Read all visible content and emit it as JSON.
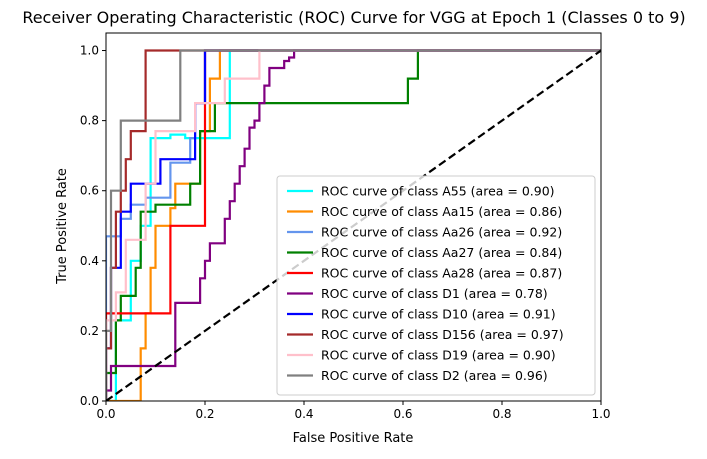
{
  "chart_data": {
    "type": "line",
    "title": "Receiver Operating Characteristic (ROC) Curve for VGG at Epoch 1 (Classes 0 to 9)",
    "xlabel": "False Positive Rate",
    "ylabel": "True Positive Rate",
    "xlim": [
      0.0,
      1.0
    ],
    "ylim": [
      0.0,
      1.05
    ],
    "xticks": [
      "0.0",
      "0.2",
      "0.4",
      "0.6",
      "0.8",
      "1.0"
    ],
    "yticks": [
      "0.0",
      "0.2",
      "0.4",
      "0.6",
      "0.8",
      "1.0"
    ],
    "grid": false,
    "legend_position": "lower-right",
    "diagonal": {
      "x": [
        0,
        1
      ],
      "y": [
        0,
        1
      ],
      "color": "#000000",
      "style": "dashed"
    },
    "series": [
      {
        "name": "ROC curve of class A55 (area = 0.90)",
        "color": "#00ffff",
        "x": [
          0,
          0.02,
          0.02,
          0.05,
          0.05,
          0.07,
          0.07,
          0.09,
          0.09,
          0.13,
          0.13,
          0.16,
          0.16,
          0.19,
          0.19,
          0.25,
          0.25,
          1.0
        ],
        "y": [
          0,
          0,
          0.23,
          0.23,
          0.4,
          0.4,
          0.5,
          0.5,
          0.75,
          0.75,
          0.76,
          0.76,
          0.75,
          0.75,
          0.75,
          0.75,
          1.0,
          1.0
        ]
      },
      {
        "name": "ROC curve of class Aa15 (area = 0.86)",
        "color": "#ff8c00",
        "x": [
          0,
          0.07,
          0.07,
          0.08,
          0.08,
          0.09,
          0.09,
          0.1,
          0.1,
          0.13,
          0.13,
          0.14,
          0.14,
          0.19,
          0.19,
          0.21,
          0.21,
          0.23,
          0.23,
          1.0
        ],
        "y": [
          0,
          0,
          0.15,
          0.15,
          0.25,
          0.25,
          0.38,
          0.38,
          0.5,
          0.5,
          0.55,
          0.55,
          0.62,
          0.62,
          0.77,
          0.77,
          0.92,
          0.92,
          1.0,
          1.0
        ]
      },
      {
        "name": "ROC curve of class Aa26 (area = 0.92)",
        "color": "#6495ed",
        "x": [
          0,
          0.0,
          0.01,
          0.01,
          0.03,
          0.03,
          0.05,
          0.05,
          0.08,
          0.08,
          0.13,
          0.13,
          0.17,
          0.17,
          0.18,
          0.18,
          0.2,
          0.2,
          1.0
        ],
        "y": [
          0,
          0.47,
          0.47,
          0.47,
          0.47,
          0.52,
          0.52,
          0.56,
          0.56,
          0.58,
          0.58,
          0.68,
          0.68,
          0.75,
          0.75,
          0.85,
          0.85,
          1.0,
          1.0
        ]
      },
      {
        "name": "ROC curve of class Aa27 (area = 0.84)",
        "color": "#008000",
        "x": [
          0,
          0.0,
          0.02,
          0.02,
          0.03,
          0.03,
          0.06,
          0.06,
          0.07,
          0.07,
          0.1,
          0.1,
          0.17,
          0.17,
          0.19,
          0.19,
          0.22,
          0.22,
          0.61,
          0.61,
          0.63,
          0.63,
          1.0
        ],
        "y": [
          0,
          0.08,
          0.08,
          0.23,
          0.23,
          0.3,
          0.3,
          0.38,
          0.38,
          0.54,
          0.54,
          0.56,
          0.56,
          0.62,
          0.62,
          0.77,
          0.77,
          0.85,
          0.85,
          0.92,
          0.92,
          1.0,
          1.0
        ]
      },
      {
        "name": "ROC curve of class Aa28 (area = 0.87)",
        "color": "#ff0000",
        "x": [
          0,
          0.0,
          0.08,
          0.08,
          0.13,
          0.13,
          0.2,
          0.2,
          1.0
        ],
        "y": [
          0,
          0.25,
          0.25,
          0.25,
          0.25,
          0.5,
          0.5,
          1.0,
          1.0
        ]
      },
      {
        "name": "ROC curve of class D1 (area = 0.78)",
        "color": "#800080",
        "x": [
          0,
          0.0,
          0.01,
          0.01,
          0.14,
          0.14,
          0.19,
          0.19,
          0.2,
          0.2,
          0.21,
          0.21,
          0.24,
          0.24,
          0.25,
          0.25,
          0.26,
          0.26,
          0.27,
          0.27,
          0.28,
          0.28,
          0.29,
          0.29,
          0.3,
          0.3,
          0.31,
          0.31,
          0.32,
          0.32,
          0.33,
          0.33,
          0.36,
          0.36,
          0.37,
          0.37,
          0.38,
          0.38,
          0.39,
          0.39,
          0.45,
          0.45,
          1.0
        ],
        "y": [
          0,
          0.03,
          0.03,
          0.1,
          0.1,
          0.28,
          0.28,
          0.35,
          0.35,
          0.4,
          0.4,
          0.45,
          0.45,
          0.52,
          0.52,
          0.57,
          0.57,
          0.62,
          0.62,
          0.67,
          0.67,
          0.72,
          0.72,
          0.78,
          0.78,
          0.8,
          0.8,
          0.85,
          0.85,
          0.9,
          0.9,
          0.95,
          0.95,
          0.97,
          0.97,
          0.98,
          0.98,
          1.0,
          1.0,
          1.0,
          1.0,
          1.0,
          1.0
        ]
      },
      {
        "name": "ROC curve of class D10 (area = 0.91)",
        "color": "#0000ff",
        "x": [
          0,
          0.0,
          0.01,
          0.01,
          0.03,
          0.03,
          0.05,
          0.05,
          0.11,
          0.11,
          0.18,
          0.18,
          0.2,
          0.2,
          1.0
        ],
        "y": [
          0,
          0.15,
          0.15,
          0.38,
          0.38,
          0.54,
          0.54,
          0.62,
          0.62,
          0.69,
          0.69,
          0.85,
          0.85,
          1.0,
          1.0
        ]
      },
      {
        "name": "ROC curve of class D156 (area = 0.97)",
        "color": "#a52a2a",
        "x": [
          0,
          0.0,
          0.01,
          0.01,
          0.02,
          0.02,
          0.03,
          0.03,
          0.04,
          0.04,
          0.05,
          0.05,
          0.08,
          0.08,
          1.0
        ],
        "y": [
          0,
          0.15,
          0.15,
          0.38,
          0.38,
          0.54,
          0.54,
          0.6,
          0.6,
          0.69,
          0.69,
          0.77,
          0.77,
          1.0,
          1.0
        ]
      },
      {
        "name": "ROC curve of class D19 (area = 0.90)",
        "color": "#ffc0cb",
        "x": [
          0,
          0.0,
          0.02,
          0.02,
          0.04,
          0.04,
          0.08,
          0.08,
          0.1,
          0.1,
          0.14,
          0.14,
          0.18,
          0.18,
          0.24,
          0.24,
          0.31,
          0.31,
          1.0
        ],
        "y": [
          0,
          0.23,
          0.23,
          0.31,
          0.31,
          0.46,
          0.46,
          0.62,
          0.62,
          0.77,
          0.77,
          0.77,
          0.77,
          0.85,
          0.85,
          0.92,
          0.92,
          1.0,
          1.0
        ]
      },
      {
        "name": "ROC curve of class D2 (area = 0.96)",
        "color": "#808080",
        "x": [
          0,
          0.0,
          0.01,
          0.01,
          0.03,
          0.03,
          0.05,
          0.05,
          0.15,
          0.15,
          1.0
        ],
        "y": [
          0,
          0.2,
          0.2,
          0.6,
          0.6,
          0.8,
          0.8,
          0.8,
          0.8,
          1.0,
          1.0
        ]
      }
    ]
  }
}
